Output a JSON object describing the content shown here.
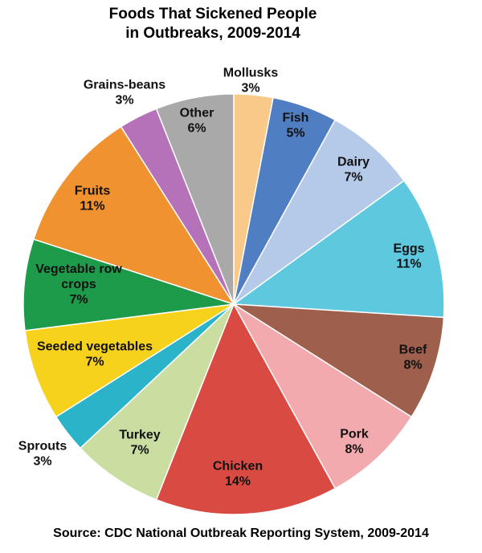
{
  "chart_data": {
    "type": "pie",
    "title": "Foods That Sickened People in Outbreaks, 2009-2014",
    "title_lines": [
      "Foods That Sickened People",
      "in Outbreaks, 2009-2014"
    ],
    "source": "Source: CDC National Outbreak Reporting System, 2009-2014",
    "start": "12 o'clock",
    "direction": "clockwise",
    "slices": [
      {
        "label": "Mollusks",
        "lines": [
          "Mollusks",
          "3%"
        ],
        "value": 3,
        "color": "#f9c98a"
      },
      {
        "label": "Fish",
        "lines": [
          "Fish",
          "5%"
        ],
        "value": 5,
        "color": "#4f7ec2"
      },
      {
        "label": "Dairy",
        "lines": [
          "Dairy",
          "7%"
        ],
        "value": 7,
        "color": "#b5c9e9"
      },
      {
        "label": "Eggs",
        "lines": [
          "Eggs",
          "11%"
        ],
        "value": 11,
        "color": "#5ec8df"
      },
      {
        "label": "Beef",
        "lines": [
          "Beef",
          "8%"
        ],
        "value": 8,
        "color": "#9e5f4d"
      },
      {
        "label": "Pork",
        "lines": [
          "Pork",
          "8%"
        ],
        "value": 8,
        "color": "#f3aaae"
      },
      {
        "label": "Chicken",
        "lines": [
          "Chicken",
          "14%"
        ],
        "value": 14,
        "color": "#d94a43"
      },
      {
        "label": "Turkey",
        "lines": [
          "Turkey",
          "7%"
        ],
        "value": 7,
        "color": "#c9dea0"
      },
      {
        "label": "Sprouts",
        "lines": [
          "Sprouts",
          "3%"
        ],
        "value": 3,
        "color": "#2bb3c9"
      },
      {
        "label": "Seeded vegetables",
        "lines": [
          "Seeded vegetables",
          "7%"
        ],
        "value": 7,
        "color": "#f7d21c"
      },
      {
        "label": "Vegetable row crops",
        "lines": [
          "Vegetable row",
          "crops",
          "7%"
        ],
        "value": 7,
        "color": "#1d9a4a"
      },
      {
        "label": "Fruits",
        "lines": [
          "Fruits",
          "11%"
        ],
        "value": 11,
        "color": "#f0922f"
      },
      {
        "label": "Grains-beans",
        "lines": [
          "Grains-beans",
          "3%"
        ],
        "value": 3,
        "color": "#b672b8"
      },
      {
        "label": "Other",
        "lines": [
          "Other",
          "6%"
        ],
        "value": 6,
        "color": "#a9a9a9"
      }
    ]
  }
}
